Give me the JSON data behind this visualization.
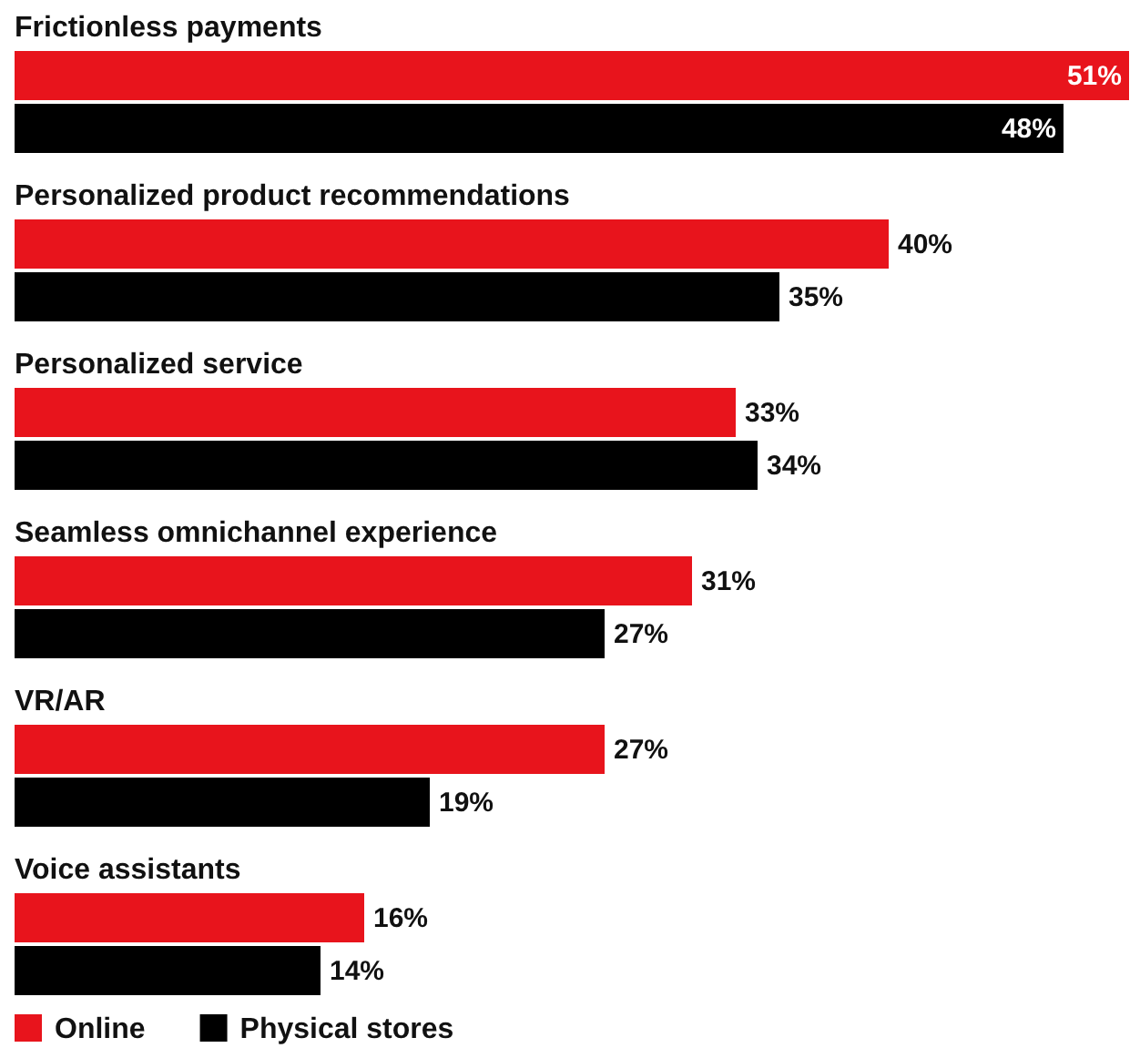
{
  "chart_data": {
    "type": "bar",
    "orientation": "horizontal",
    "categories": [
      "Frictionless payments",
      "Personalized product recommendations",
      "Personalized service",
      "Seamless omnichannel experience",
      "VR/AR",
      "Voice assistants"
    ],
    "series": [
      {
        "name": "Online",
        "color": "#e8141c",
        "values": [
          51,
          40,
          33,
          31,
          27,
          16
        ],
        "value_labels": [
          "51%",
          "40%",
          "33%",
          "31%",
          "27%",
          "16%"
        ]
      },
      {
        "name": "Physical stores",
        "color": "#000000",
        "values": [
          48,
          35,
          34,
          27,
          19,
          14
        ],
        "value_labels": [
          "48%",
          "35%",
          "34%",
          "27%",
          "19%",
          "14%"
        ]
      }
    ],
    "legend": "bottom left"
  }
}
